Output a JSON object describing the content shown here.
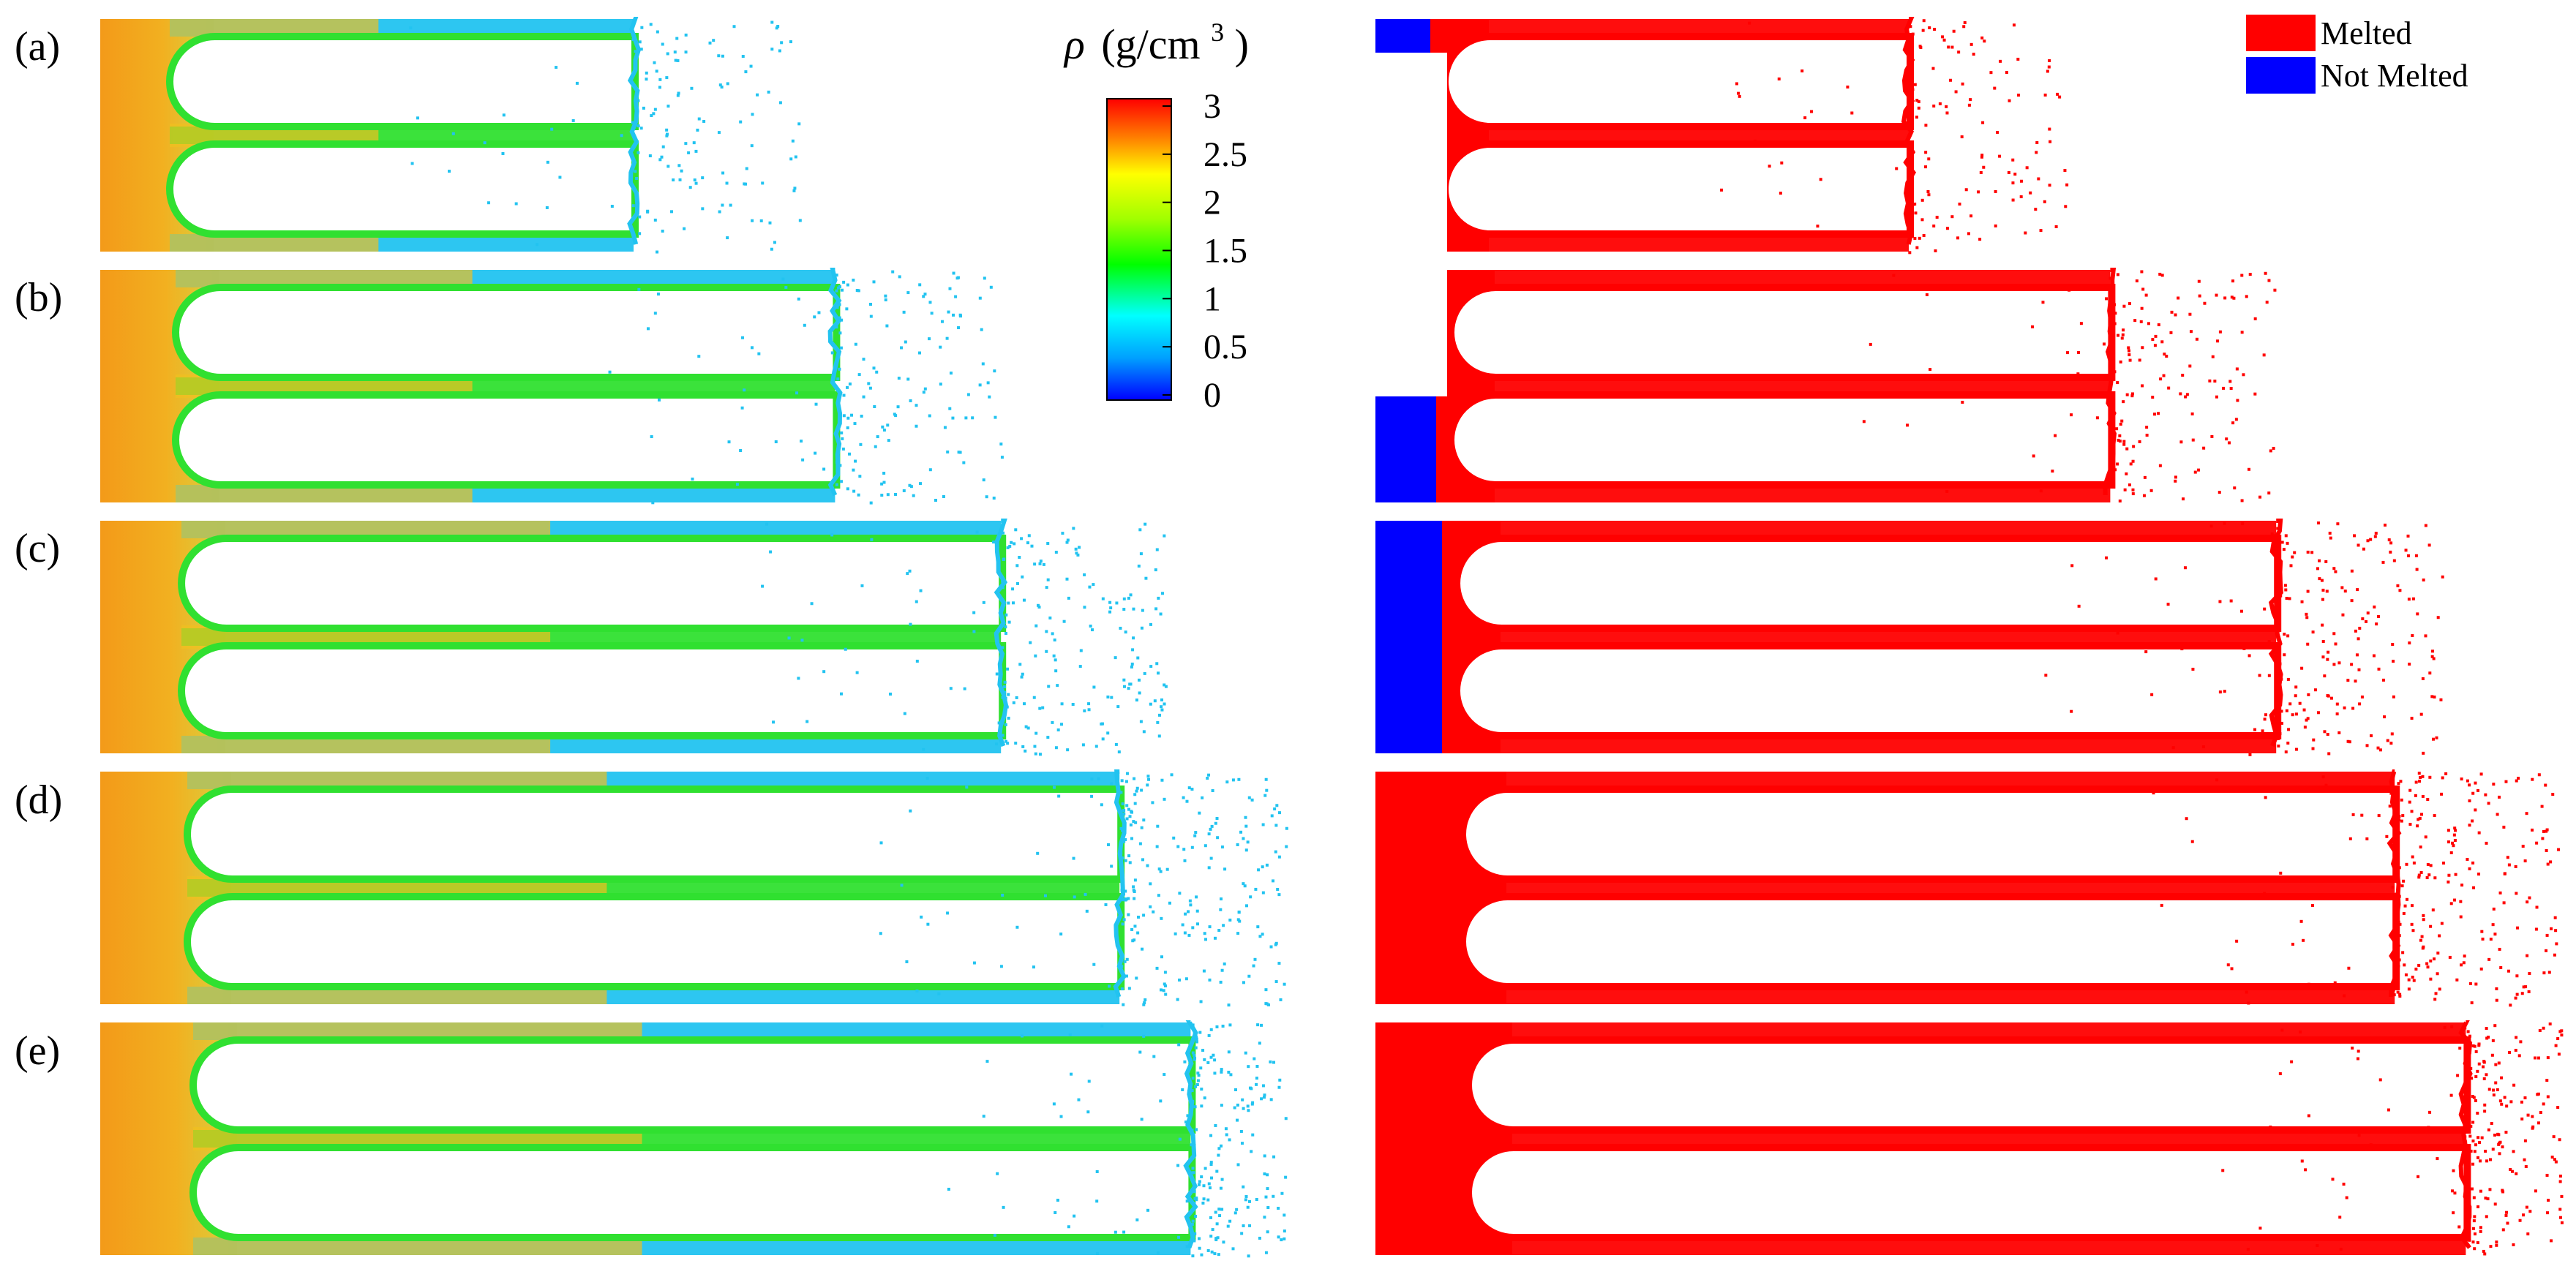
{
  "panels": [
    {
      "label": "(a)",
      "front_frac": 0.45
    },
    {
      "label": "(b)",
      "front_frac": 0.62
    },
    {
      "label": "(c)",
      "front_frac": 0.76
    },
    {
      "label": "(d)",
      "front_frac": 0.86
    },
    {
      "label": "(e)",
      "front_frac": 0.92
    }
  ],
  "colorbar": {
    "symbol": "ρ",
    "unit_open": "(g/cm",
    "unit_exp": "3",
    "unit_close": ")",
    "ticks": [
      "3",
      "2.5",
      "2",
      "1.5",
      "1",
      "0.5",
      "0"
    ],
    "min": 0,
    "max": 3,
    "colors": [
      "#0000ff",
      "#00a0ff",
      "#00ffff",
      "#00ff00",
      "#a0ff00",
      "#ffff00",
      "#ff8000",
      "#ff0000"
    ]
  },
  "legend": {
    "items": [
      {
        "label": "Melted",
        "color": "#ff0000"
      },
      {
        "label": "Not Melted",
        "color": "#0000ff"
      }
    ]
  },
  "colors": {
    "solid_density": "#f59a1a",
    "low_density": "#22c3f0",
    "mid_density": "#30e030",
    "melted": "#ff0000",
    "not_melted": "#0000ff"
  }
}
